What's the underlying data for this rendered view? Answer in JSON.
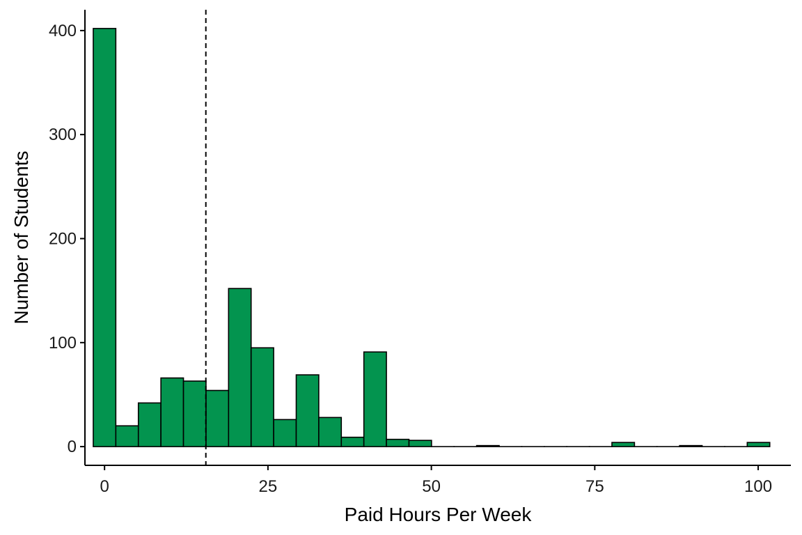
{
  "chart_data": {
    "type": "bar",
    "xlabel": "Paid Hours Per Week",
    "ylabel": "Number of Students",
    "xlim": [
      -3,
      105
    ],
    "ylim": [
      -18,
      420
    ],
    "xticks": [
      0,
      25,
      50,
      75,
      100
    ],
    "yticks": [
      0,
      100,
      200,
      300,
      400
    ],
    "bin_width": 3.45,
    "bin_centers": [
      0,
      3.45,
      6.9,
      10.35,
      13.8,
      17.25,
      20.7,
      24.15,
      27.6,
      31.05,
      34.5,
      37.95,
      41.4,
      44.85,
      48.3,
      51.75,
      55.2,
      58.65,
      62.1,
      65.55,
      69,
      72.45,
      75.9,
      79.35,
      82.8,
      86.25,
      89.7,
      93.15,
      96.6,
      100.05
    ],
    "counts": [
      402,
      20,
      42,
      66,
      63,
      54,
      152,
      95,
      26,
      69,
      28,
      9,
      91,
      7,
      6,
      0,
      0,
      1,
      0,
      0,
      0,
      0,
      0,
      4,
      0,
      0,
      1,
      0,
      0,
      4
    ],
    "reference_line_x": 15.5,
    "grid": false,
    "colors": {
      "bar_fill": "#03944F",
      "bar_stroke": "#000000",
      "axis": "#000000"
    }
  }
}
